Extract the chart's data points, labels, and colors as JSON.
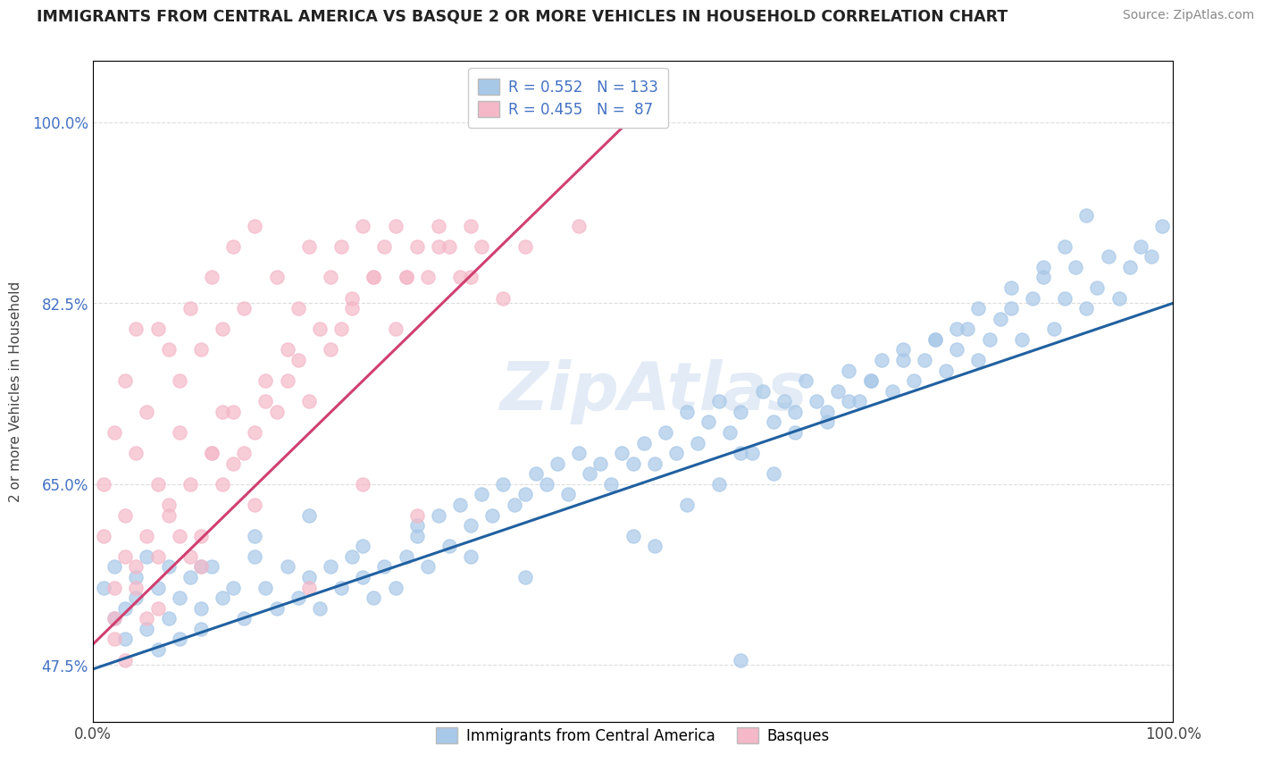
{
  "title": "IMMIGRANTS FROM CENTRAL AMERICA VS BASQUE 2 OR MORE VEHICLES IN HOUSEHOLD CORRELATION CHART",
  "source": "Source: ZipAtlas.com",
  "ylabel": "2 or more Vehicles in Household",
  "legend1_label": "Immigrants from Central America",
  "legend2_label": "Basques",
  "r1": 0.552,
  "n1": 133,
  "r2": 0.455,
  "n2": 87,
  "blue_color": "#a8c8e8",
  "pink_color": "#f4b8c8",
  "line_blue": "#2060a0",
  "line_pink": "#d04070",
  "text_blue": "#4472c4",
  "xlim": [
    0.0,
    1.0
  ],
  "ylim": [
    0.42,
    1.06
  ],
  "yticks": [
    0.475,
    0.65,
    0.825,
    1.0
  ],
  "ytick_labels": [
    "47.5%",
    "65.0%",
    "82.5%",
    "100.0%"
  ],
  "blue_line_x": [
    0.0,
    1.0
  ],
  "blue_line_y": [
    0.471,
    0.825
  ],
  "pink_line_x": [
    0.0,
    0.5
  ],
  "pink_line_y": [
    0.495,
    1.005
  ],
  "blue_x": [
    0.01,
    0.02,
    0.02,
    0.03,
    0.03,
    0.04,
    0.04,
    0.05,
    0.05,
    0.06,
    0.06,
    0.07,
    0.07,
    0.08,
    0.08,
    0.09,
    0.1,
    0.1,
    0.11,
    0.12,
    0.13,
    0.14,
    0.15,
    0.16,
    0.17,
    0.18,
    0.19,
    0.2,
    0.21,
    0.22,
    0.23,
    0.24,
    0.25,
    0.26,
    0.27,
    0.28,
    0.29,
    0.3,
    0.31,
    0.32,
    0.33,
    0.34,
    0.35,
    0.36,
    0.37,
    0.38,
    0.39,
    0.4,
    0.41,
    0.42,
    0.43,
    0.44,
    0.45,
    0.46,
    0.47,
    0.48,
    0.49,
    0.5,
    0.51,
    0.52,
    0.53,
    0.54,
    0.55,
    0.56,
    0.57,
    0.58,
    0.59,
    0.6,
    0.61,
    0.62,
    0.63,
    0.64,
    0.65,
    0.66,
    0.67,
    0.68,
    0.69,
    0.7,
    0.71,
    0.72,
    0.73,
    0.74,
    0.75,
    0.76,
    0.77,
    0.78,
    0.79,
    0.8,
    0.81,
    0.82,
    0.83,
    0.84,
    0.85,
    0.86,
    0.87,
    0.88,
    0.89,
    0.9,
    0.91,
    0.92,
    0.93,
    0.94,
    0.95,
    0.96,
    0.97,
    0.98,
    0.99,
    0.5,
    0.52,
    0.55,
    0.58,
    0.6,
    0.63,
    0.65,
    0.68,
    0.7,
    0.72,
    0.75,
    0.78,
    0.8,
    0.82,
    0.85,
    0.88,
    0.9,
    0.92,
    0.6,
    0.4,
    0.35,
    0.3,
    0.25,
    0.2,
    0.15,
    0.1
  ],
  "blue_y": [
    0.55,
    0.52,
    0.57,
    0.53,
    0.5,
    0.56,
    0.54,
    0.51,
    0.58,
    0.49,
    0.55,
    0.52,
    0.57,
    0.5,
    0.54,
    0.56,
    0.53,
    0.51,
    0.57,
    0.54,
    0.55,
    0.52,
    0.58,
    0.55,
    0.53,
    0.57,
    0.54,
    0.56,
    0.53,
    0.57,
    0.55,
    0.58,
    0.56,
    0.54,
    0.57,
    0.55,
    0.58,
    0.6,
    0.57,
    0.62,
    0.59,
    0.63,
    0.61,
    0.64,
    0.62,
    0.65,
    0.63,
    0.64,
    0.66,
    0.65,
    0.67,
    0.64,
    0.68,
    0.66,
    0.67,
    0.65,
    0.68,
    0.67,
    0.69,
    0.67,
    0.7,
    0.68,
    0.72,
    0.69,
    0.71,
    0.73,
    0.7,
    0.72,
    0.68,
    0.74,
    0.71,
    0.73,
    0.72,
    0.75,
    0.73,
    0.71,
    0.74,
    0.76,
    0.73,
    0.75,
    0.77,
    0.74,
    0.78,
    0.75,
    0.77,
    0.79,
    0.76,
    0.78,
    0.8,
    0.77,
    0.79,
    0.81,
    0.82,
    0.79,
    0.83,
    0.85,
    0.8,
    0.83,
    0.86,
    0.82,
    0.84,
    0.87,
    0.83,
    0.86,
    0.88,
    0.87,
    0.9,
    0.6,
    0.59,
    0.63,
    0.65,
    0.68,
    0.66,
    0.7,
    0.72,
    0.73,
    0.75,
    0.77,
    0.79,
    0.8,
    0.82,
    0.84,
    0.86,
    0.88,
    0.91,
    0.48,
    0.56,
    0.58,
    0.61,
    0.59,
    0.62,
    0.6,
    0.57
  ],
  "pink_x": [
    0.01,
    0.01,
    0.02,
    0.02,
    0.03,
    0.03,
    0.03,
    0.04,
    0.04,
    0.04,
    0.05,
    0.05,
    0.06,
    0.06,
    0.06,
    0.07,
    0.07,
    0.08,
    0.08,
    0.09,
    0.09,
    0.1,
    0.1,
    0.11,
    0.11,
    0.12,
    0.12,
    0.13,
    0.13,
    0.14,
    0.14,
    0.15,
    0.15,
    0.16,
    0.17,
    0.17,
    0.18,
    0.19,
    0.2,
    0.2,
    0.21,
    0.22,
    0.23,
    0.24,
    0.25,
    0.26,
    0.27,
    0.28,
    0.29,
    0.3,
    0.31,
    0.32,
    0.33,
    0.34,
    0.35,
    0.36,
    0.2,
    0.25,
    0.3,
    0.05,
    0.1,
    0.15,
    0.08,
    0.12,
    0.18,
    0.22,
    0.28,
    0.35,
    0.4,
    0.38,
    0.45,
    0.03,
    0.06,
    0.09,
    0.13,
    0.16,
    0.23,
    0.26,
    0.32,
    0.07,
    0.11,
    0.02,
    0.02,
    0.04,
    0.19,
    0.24,
    0.29
  ],
  "pink_y": [
    0.6,
    0.65,
    0.55,
    0.7,
    0.58,
    0.62,
    0.75,
    0.55,
    0.68,
    0.8,
    0.6,
    0.72,
    0.58,
    0.65,
    0.8,
    0.62,
    0.78,
    0.6,
    0.75,
    0.65,
    0.82,
    0.6,
    0.78,
    0.68,
    0.85,
    0.65,
    0.8,
    0.72,
    0.88,
    0.68,
    0.82,
    0.7,
    0.9,
    0.75,
    0.72,
    0.85,
    0.78,
    0.82,
    0.73,
    0.88,
    0.8,
    0.85,
    0.88,
    0.83,
    0.9,
    0.85,
    0.88,
    0.9,
    0.85,
    0.88,
    0.85,
    0.9,
    0.88,
    0.85,
    0.9,
    0.88,
    0.55,
    0.65,
    0.62,
    0.52,
    0.57,
    0.63,
    0.7,
    0.72,
    0.75,
    0.78,
    0.8,
    0.85,
    0.88,
    0.83,
    0.9,
    0.48,
    0.53,
    0.58,
    0.67,
    0.73,
    0.8,
    0.85,
    0.88,
    0.63,
    0.68,
    0.52,
    0.5,
    0.57,
    0.77,
    0.82,
    0.85
  ]
}
